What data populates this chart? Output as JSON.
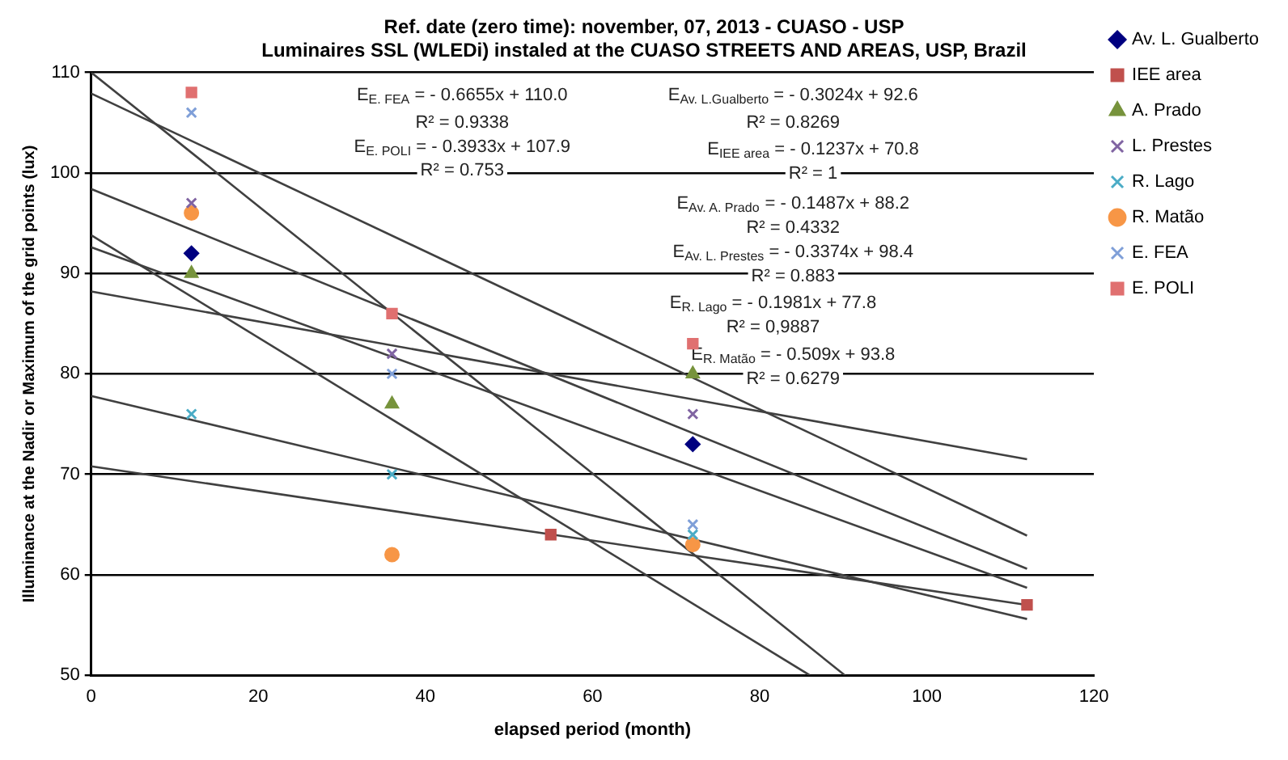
{
  "chart_data": {
    "type": "scatter",
    "title": "Ref. date (zero time): november, 07, 2013 - CUASO - USP",
    "subtitle": "Luminaires SSL (WLEDi) instaled at the CUASO STREETS AND AREAS, USP, Brazil",
    "xlabel": "elapsed period (month)",
    "ylabel": "Illuminance at the Nadir or Maximum of the grid points (lux)",
    "xlim": [
      0,
      120
    ],
    "xticks": [
      0,
      20,
      40,
      60,
      80,
      100,
      120
    ],
    "ylim": [
      50,
      110
    ],
    "yticks": [
      50,
      60,
      70,
      80,
      90,
      100,
      110
    ],
    "grid": "y",
    "legend": "right",
    "series": [
      {
        "name": "Av. L. Gualberto",
        "color": "#000080",
        "marker": "diamond",
        "x": [
          12,
          72
        ],
        "values": [
          92,
          73
        ]
      },
      {
        "name": "IEE area",
        "color": "#c0504d",
        "marker": "square",
        "x": [
          55,
          112
        ],
        "values": [
          64,
          57
        ]
      },
      {
        "name": "A. Prado",
        "color": "#77933c",
        "marker": "triangle",
        "x": [
          12,
          36,
          72
        ],
        "values": [
          90,
          77,
          80
        ]
      },
      {
        "name": "L. Prestes",
        "color": "#8064a2",
        "marker": "cross",
        "x": [
          12,
          36,
          72
        ],
        "values": [
          97,
          82,
          76
        ]
      },
      {
        "name": "R. Lago",
        "color": "#4bacc6",
        "marker": "cross",
        "x": [
          12,
          36,
          72
        ],
        "values": [
          76,
          70,
          64
        ]
      },
      {
        "name": "R. Matão",
        "color": "#f79646",
        "marker": "circle",
        "x": [
          12,
          36,
          72
        ],
        "values": [
          96,
          62,
          63
        ]
      },
      {
        "name": "E. FEA",
        "color": "#7f9fd8",
        "marker": "cross",
        "x": [
          12,
          36,
          72
        ],
        "values": [
          106,
          80,
          65
        ]
      },
      {
        "name": "E. POLI",
        "color": "#e07070",
        "marker": "square",
        "x": [
          12,
          36,
          72
        ],
        "values": [
          108,
          86,
          83
        ]
      },
      {
        "type": "line",
        "color": "#404040",
        "marker": "none",
        "x": [
          0,
          90.2
        ],
        "values": [
          110,
          50
        ]
      },
      {
        "type": "line",
        "color": "#404040",
        "marker": "none",
        "x": [
          0,
          112
        ],
        "values": [
          107.9,
          63.9
        ]
      },
      {
        "type": "line",
        "color": "#404040",
        "marker": "none",
        "x": [
          0,
          112
        ],
        "values": [
          92.6,
          58.7
        ]
      },
      {
        "type": "line",
        "color": "#404040",
        "marker": "none",
        "x": [
          0,
          112
        ],
        "values": [
          70.8,
          57
        ]
      },
      {
        "type": "line",
        "color": "#404040",
        "marker": "none",
        "x": [
          0,
          112
        ],
        "values": [
          88.2,
          71.5
        ]
      },
      {
        "type": "line",
        "color": "#404040",
        "marker": "none",
        "x": [
          0,
          112
        ],
        "values": [
          98.4,
          60.6
        ]
      },
      {
        "type": "line",
        "color": "#404040",
        "marker": "none",
        "x": [
          0,
          112
        ],
        "values": [
          77.8,
          55.6
        ]
      },
      {
        "type": "line",
        "color": "#404040",
        "marker": "none",
        "x": [
          0,
          86
        ],
        "values": [
          93.8,
          50
        ]
      }
    ],
    "annotations": [
      "E$_{E. FEA}$ = - 0.6655x + 110.0",
      "R² = 0.9338",
      "E$_{E. POLI}$ = - 0.3933x + 107.9",
      "R² = 0.753",
      "E$_{Av. L.Gualberto}$ = - 0.3024x + 92.6",
      "R² = 0.8269",
      "E$_{IEE area}$ = - 0.1237x + 70.8",
      "R² = 1",
      "E$_{Av. A. Prado}$ = - 0.1487x + 88.2",
      "R² = 0.4332",
      "E$_{Av. L. Prestes}$ = - 0.3374x + 98.4",
      "R² = 0.883",
      "E$_{R. Lago}$ = - 0.1981x + 77.8",
      "R² = 0,9887",
      "E$_{R. Matão}$ = - 0.509x + 93.8",
      "R² = 0.6279"
    ]
  }
}
